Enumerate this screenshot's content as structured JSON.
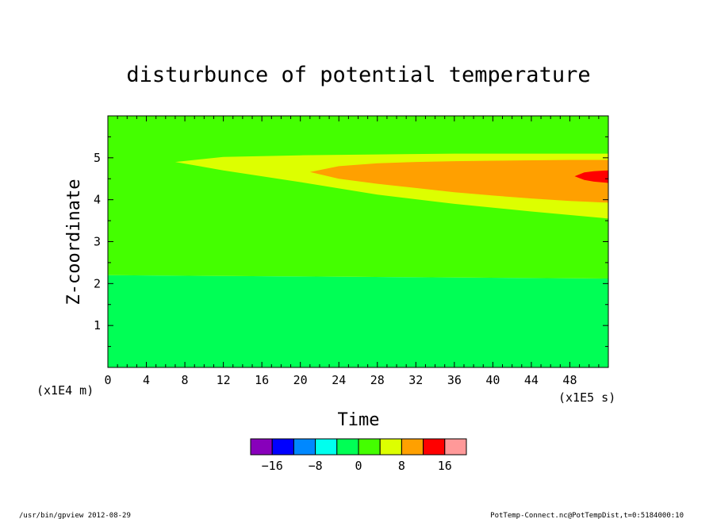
{
  "chart_data": {
    "type": "heatmap",
    "title": "disturbunce of potential temperature",
    "xlabel": "Time",
    "ylabel": "Z-coordinate",
    "x_unit_label": "(x1E5 s)",
    "y_unit_label": "(x1E4 m)",
    "xlim": [
      0,
      52
    ],
    "ylim": [
      0,
      6
    ],
    "x_ticks": [
      "0",
      "4",
      "8",
      "12",
      "16",
      "20",
      "24",
      "28",
      "32",
      "36",
      "40",
      "44",
      "48"
    ],
    "y_ticks": [
      "1",
      "2",
      "3",
      "4",
      "5"
    ],
    "contour_levels": [
      -20,
      -16,
      -12,
      -8,
      -4,
      0,
      4,
      8,
      12,
      16,
      20
    ],
    "regions": [
      {
        "range": [
          -4,
          0
        ],
        "color": "#00ff55",
        "description_points": [
          [
            0,
            0
          ],
          [
            52,
            0
          ],
          [
            52,
            2.12
          ],
          [
            0,
            2.2
          ]
        ]
      },
      {
        "range": [
          0,
          4
        ],
        "color": "#44ff00",
        "description_points": [
          [
            0,
            2.2
          ],
          [
            52,
            2.12
          ],
          [
            52,
            6
          ],
          [
            0,
            6
          ]
        ]
      },
      {
        "range": [
          4,
          8
        ],
        "color": "#ddff00",
        "x": [
          7,
          12,
          20,
          28,
          36,
          44,
          52
        ],
        "y_lower": [
          4.9,
          4.7,
          4.42,
          4.12,
          3.9,
          3.72,
          3.55
        ],
        "y_upper": [
          4.9,
          5.02,
          5.06,
          5.08,
          5.1,
          5.1,
          5.1
        ]
      },
      {
        "range": [
          8,
          12
        ],
        "color": "#ffa000",
        "x": [
          21,
          24,
          28,
          32,
          36,
          40,
          44,
          48,
          52
        ],
        "y_lower": [
          4.66,
          4.5,
          4.38,
          4.28,
          4.18,
          4.1,
          4.03,
          3.97,
          3.93
        ],
        "y_upper": [
          4.66,
          4.8,
          4.87,
          4.9,
          4.92,
          4.93,
          4.94,
          4.95,
          4.95
        ]
      },
      {
        "range": [
          12,
          16
        ],
        "color": "#ff0000",
        "x": [
          48.5,
          49.5,
          50.5,
          52
        ],
        "y_lower": [
          4.56,
          4.47,
          4.43,
          4.4
        ],
        "y_upper": [
          4.56,
          4.65,
          4.68,
          4.7
        ]
      }
    ],
    "colorbar": {
      "colors": [
        "#8800bb",
        "#0000ff",
        "#0088ff",
        "#00ffee",
        "#00ff55",
        "#44ff00",
        "#ddff00",
        "#ffa000",
        "#ff0000",
        "#ff9999"
      ],
      "labels": [
        "−16",
        "−8",
        "0",
        "8",
        "16"
      ],
      "label_values": [
        -16,
        -8,
        0,
        8,
        16
      ]
    }
  },
  "footer": {
    "left": "/usr/bin/gpview  2012-08-29",
    "right": "PotTemp-Connect.nc@PotTempDist,t=0:5184000:10"
  }
}
